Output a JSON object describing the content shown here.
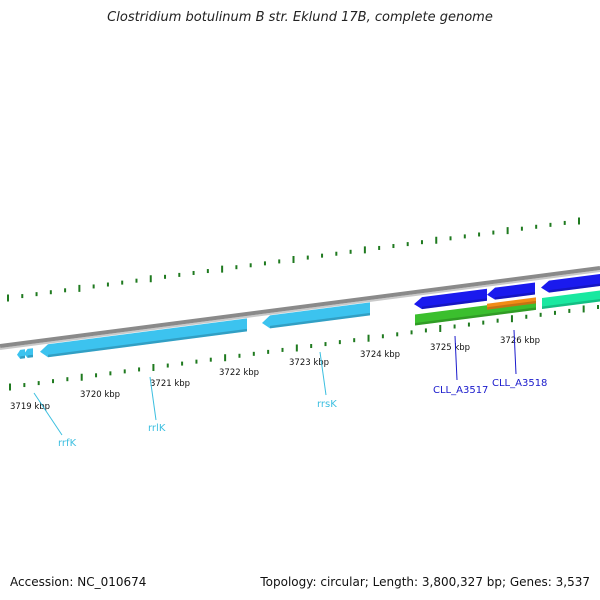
{
  "title": "Clostridium botulinum B str. Eklund 17B, complete genome",
  "footer": {
    "accession": "Accession: NC_010674",
    "summary": "Topology: circular; Length: 3,800,327 bp; Genes: 3,537"
  },
  "colors": {
    "backbone": "#8a8a8a",
    "tick": "#1f7a1f",
    "rna": "#3cc3ef",
    "rna_label": "#3cbfe0",
    "cds": "#1a1aee",
    "cds_label": "#1a1acc",
    "gene_green": "#3bbf2e",
    "gene_orange": "#f28c16",
    "gene_teal": "#19e8a0"
  },
  "scale_labels": [
    "3719 kbp",
    "3720 kbp",
    "3721 kbp",
    "3722 kbp",
    "3723 kbp",
    "3724 kbp",
    "3725 kbp",
    "3726 kbp"
  ],
  "feature_labels": [
    {
      "text": "rrfK",
      "color_key": "rna_label"
    },
    {
      "text": "rrlK",
      "color_key": "rna_label"
    },
    {
      "text": "rrsK",
      "color_key": "rna_label"
    },
    {
      "text": "CLL_A3517",
      "color_key": "cds_label"
    },
    {
      "text": "CLL_A3518",
      "color_key": "cds_label"
    }
  ]
}
